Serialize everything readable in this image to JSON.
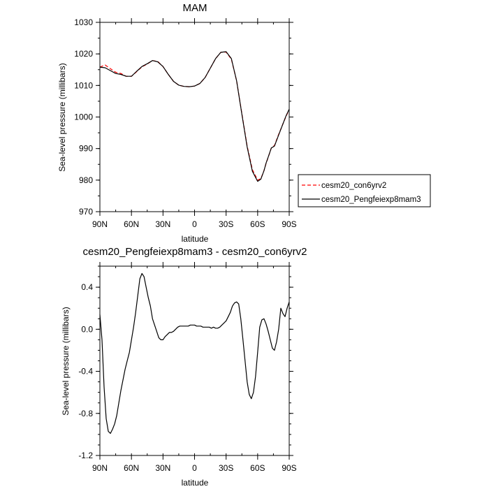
{
  "chart_data": [
    {
      "type": "line",
      "title": "MAM",
      "xlabel": "latitude",
      "ylabel": "Sea-level pressure (millibars)",
      "x_unit": "degrees latitude (positive = N)",
      "xlim": [
        90,
        -90
      ],
      "ylim": [
        970,
        1030
      ],
      "x_ticks": [
        90,
        60,
        30,
        0,
        -30,
        -60,
        -90
      ],
      "x_tick_labels": [
        "90N",
        "60N",
        "30N",
        "0",
        "30S",
        "60S",
        "90S"
      ],
      "y_ticks": [
        970,
        980,
        990,
        1000,
        1010,
        1020,
        1030
      ],
      "y_tick_labels": [
        "970",
        "980",
        "990",
        "1000",
        "1010",
        "1020",
        "1030"
      ],
      "legend_position": "right",
      "series": [
        {
          "name": "cesm20_con6yrv2",
          "color": "#ff0000",
          "style": "dashed",
          "x": [
            90,
            85,
            80,
            75,
            70,
            65,
            60,
            55,
            50,
            45,
            40,
            35,
            30,
            25,
            20,
            15,
            10,
            5,
            0,
            -5,
            -10,
            -15,
            -20,
            -25,
            -30,
            -35,
            -40,
            -45,
            -50,
            -55,
            -60,
            -63,
            -66,
            -68,
            -70,
            -73,
            -76,
            -80,
            -84,
            -87,
            -90
          ],
          "y": [
            1015.8,
            1016.5,
            1015.3,
            1014.2,
            1013.8,
            1012.9,
            1012.9,
            1014.4,
            1015.9,
            1016.8,
            1017.9,
            1017.6,
            1016.0,
            1013.5,
            1011.3,
            1010.1,
            1009.7,
            1009.6,
            1009.8,
            1010.6,
            1012.5,
            1015.5,
            1018.5,
            1020.5,
            1020.6,
            1018.3,
            1011.5,
            1001.0,
            990.8,
            983.3,
            980.0,
            980.5,
            983.0,
            985.3,
            987.2,
            990.2,
            991.0,
            994.5,
            997.8,
            1000.2,
            1002.4
          ]
        },
        {
          "name": "cesm20_Pengfeiexp8mam3",
          "color": "#000000",
          "style": "solid",
          "x": [
            90,
            85,
            80,
            75,
            70,
            65,
            60,
            55,
            50,
            45,
            40,
            35,
            30,
            25,
            20,
            15,
            10,
            5,
            0,
            -5,
            -10,
            -15,
            -20,
            -25,
            -30,
            -35,
            -40,
            -45,
            -50,
            -55,
            -60,
            -63,
            -66,
            -68,
            -70,
            -73,
            -76,
            -80,
            -84,
            -87,
            -90
          ],
          "y": [
            1015.8,
            1015.6,
            1014.7,
            1013.8,
            1013.5,
            1012.9,
            1012.9,
            1014.5,
            1016.0,
            1016.9,
            1017.9,
            1017.5,
            1016.0,
            1013.5,
            1011.3,
            1010.1,
            1009.7,
            1009.6,
            1009.8,
            1010.6,
            1012.5,
            1015.5,
            1018.5,
            1020.5,
            1020.7,
            1018.5,
            1011.5,
            1000.8,
            990.5,
            982.8,
            979.6,
            980.3,
            983.0,
            985.4,
            987.3,
            990.2,
            990.8,
            994.3,
            997.8,
            1000.4,
            1002.5
          ]
        }
      ]
    },
    {
      "type": "line",
      "title": "cesm20_Pengfeiexp8mam3 - cesm20_con6yrv2",
      "xlabel": "latitude",
      "ylabel": "Sea-level pressure (millibars)",
      "x_unit": "degrees latitude (positive = N)",
      "xlim": [
        90,
        -90
      ],
      "ylim": [
        -1.2,
        0.6
      ],
      "x_ticks": [
        90,
        60,
        30,
        0,
        -30,
        -60,
        -90
      ],
      "x_tick_labels": [
        "90N",
        "60N",
        "30N",
        "0",
        "30S",
        "60S",
        "90S"
      ],
      "y_ticks": [
        -1.2,
        -0.8,
        -0.4,
        0.0,
        0.4
      ],
      "y_tick_labels": [
        "-1.2",
        "-0.8",
        "-0.4",
        "0.0",
        "0.4"
      ],
      "series": [
        {
          "name": "",
          "color": "#000000",
          "style": "solid",
          "x": [
            90,
            88,
            86,
            84,
            82,
            80,
            78,
            76,
            74,
            72,
            70,
            68,
            66,
            64,
            62,
            60,
            58,
            56,
            54,
            52,
            50,
            48,
            46,
            44,
            42,
            40,
            38,
            36,
            34,
            32,
            30,
            28,
            26,
            24,
            22,
            20,
            18,
            16,
            14,
            12,
            10,
            8,
            6,
            4,
            2,
            0,
            -2,
            -4,
            -6,
            -8,
            -10,
            -12,
            -14,
            -16,
            -18,
            -20,
            -22,
            -24,
            -26,
            -28,
            -30,
            -32,
            -34,
            -36,
            -38,
            -40,
            -42,
            -44,
            -46,
            -48,
            -50,
            -52,
            -54,
            -56,
            -58,
            -60,
            -62,
            -64,
            -66,
            -68,
            -70,
            -72,
            -74,
            -76,
            -78,
            -80,
            -82,
            -84,
            -86,
            -88,
            -90
          ],
          "y": [
            0.14,
            -0.1,
            -0.55,
            -0.85,
            -0.97,
            -0.99,
            -0.95,
            -0.9,
            -0.82,
            -0.7,
            -0.58,
            -0.48,
            -0.38,
            -0.3,
            -0.22,
            -0.1,
            0.02,
            0.16,
            0.32,
            0.48,
            0.53,
            0.5,
            0.4,
            0.3,
            0.22,
            0.1,
            0.04,
            -0.02,
            -0.08,
            -0.1,
            -0.1,
            -0.07,
            -0.05,
            -0.03,
            -0.03,
            -0.02,
            0.0,
            0.02,
            0.03,
            0.03,
            0.03,
            0.03,
            0.03,
            0.04,
            0.04,
            0.04,
            0.03,
            0.03,
            0.03,
            0.02,
            0.02,
            0.02,
            0.02,
            0.01,
            0.02,
            0.01,
            0.01,
            0.02,
            0.04,
            0.06,
            0.08,
            0.12,
            0.16,
            0.22,
            0.25,
            0.26,
            0.24,
            0.1,
            -0.1,
            -0.3,
            -0.5,
            -0.62,
            -0.66,
            -0.6,
            -0.45,
            -0.22,
            0.02,
            0.09,
            0.1,
            0.05,
            -0.02,
            -0.1,
            -0.18,
            -0.2,
            -0.12,
            0.0,
            0.2,
            0.15,
            0.12,
            0.2,
            0.26
          ]
        }
      ]
    }
  ]
}
